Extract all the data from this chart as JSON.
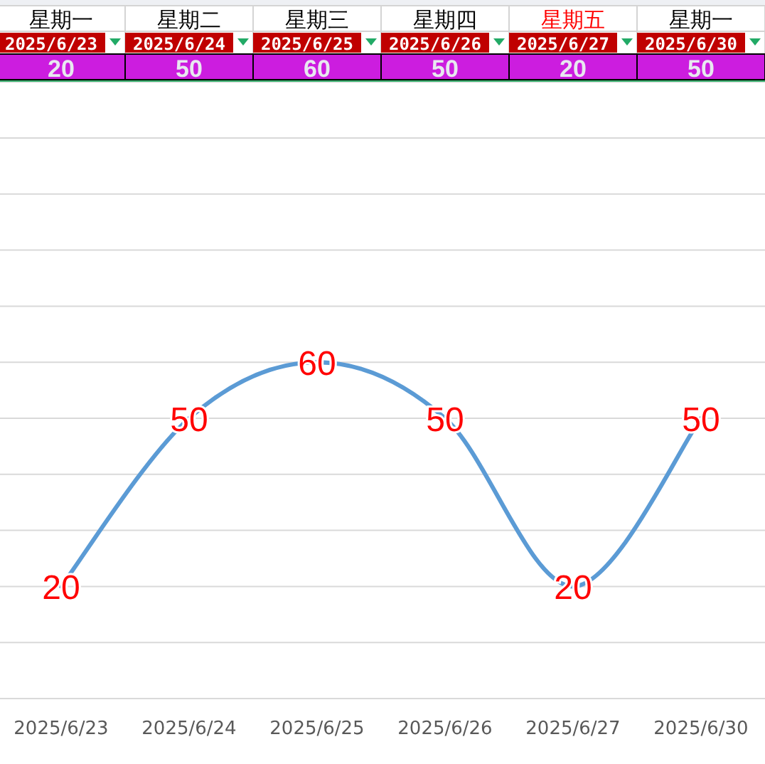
{
  "chart_data": {
    "type": "line",
    "categories": [
      "2025/6/23",
      "2025/6/24",
      "2025/6/25",
      "2025/6/26",
      "2025/6/27",
      "2025/6/30"
    ],
    "series": [
      {
        "color": "#5b9bd5",
        "values": [
          20,
          50,
          60,
          50,
          20,
          50
        ]
      }
    ],
    "ylim": [
      0,
      110
    ],
    "yticks": [
      {
        "value": 0,
        "label": null
      },
      {
        "value": 10,
        "label": null
      },
      {
        "value": 20,
        "label": null
      },
      {
        "value": 30,
        "label": null
      },
      {
        "value": 40,
        "label": null
      },
      {
        "value": 50,
        "label": null
      },
      {
        "value": 60,
        "label": null
      },
      {
        "value": 70,
        "label": null
      },
      {
        "value": 80,
        "label": null
      },
      {
        "value": 90,
        "label": null
      },
      {
        "value": 100,
        "label": null
      },
      {
        "value": 110,
        "label": null
      }
    ],
    "grid": "y",
    "data_labels": true,
    "marker": "none",
    "line_style": "solid",
    "annotations": [
      "星期一",
      "星期二",
      "星期三",
      "星期四",
      "星期五",
      "星期一",
      "20",
      "50",
      "60",
      "50",
      "20",
      "50"
    ]
  }
}
